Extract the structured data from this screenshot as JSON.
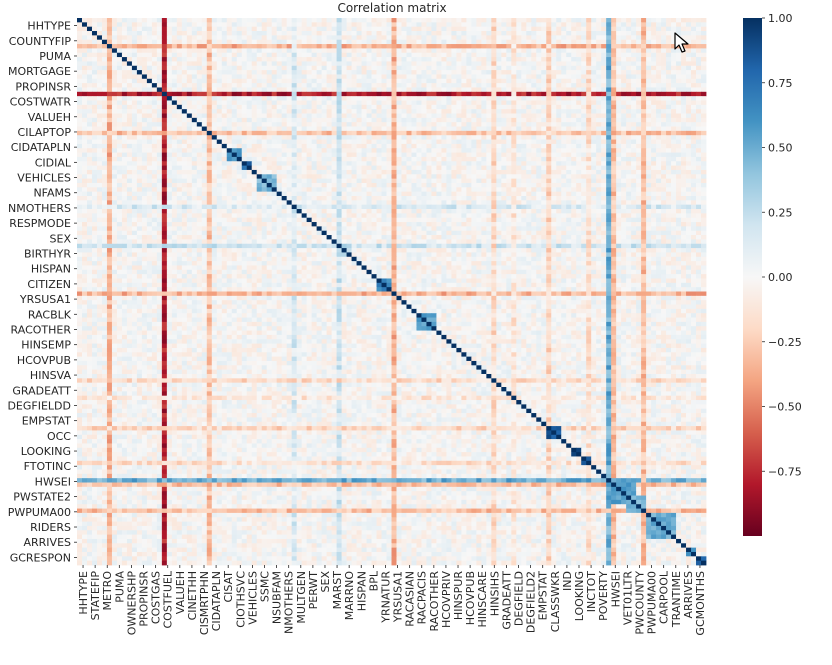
{
  "chart_data": {
    "type": "heatmap",
    "title": "Correlation matrix",
    "xlabel": "",
    "ylabel": "",
    "n_variables": 126,
    "y_tick_labels": [
      "HHTYPE",
      "COUNTYFIP",
      "PUMA",
      "MORTGAGE",
      "PROPINSR",
      "COSTWATR",
      "VALUEH",
      "CILAPTOP",
      "CIDATAPLN",
      "CIDIAL",
      "VEHICLES",
      "NFAMS",
      "NMOTHERS",
      "RESPMODE",
      "SEX",
      "BIRTHYR",
      "HISPAN",
      "CITIZEN",
      "YRSUSA1",
      "RACBLK",
      "RACOTHER",
      "HINSEMP",
      "HCOVPUB",
      "HINSVA",
      "GRADEATT",
      "DEGFIELDD",
      "EMPSTAT",
      "OCC",
      "LOOKING",
      "FTOTINC",
      "HWSEI",
      "PWSTATE2",
      "PWPUMA00",
      "RIDERS",
      "ARRIVES",
      "GCRESPON"
    ],
    "x_tick_labels": [
      "HHTYPE",
      "STATEFIP",
      "METRO",
      "PUMA",
      "OWNERSHP",
      "PROPINSR",
      "COSTGAS",
      "COSTFUEL",
      "VALUEH",
      "CINETHH",
      "CISMRTPHN",
      "CIDATAPLN",
      "CISAT",
      "CIOTHSVC",
      "VEHICLES",
      "SSMC",
      "NSUBFAM",
      "NMOTHERS",
      "MULTGEN",
      "PERWT",
      "SEX",
      "MARST",
      "MARRNO",
      "HISPAN",
      "BPL",
      "YRNATUR",
      "YRSUSA1",
      "RACASIAN",
      "RACPACIS",
      "RACOTHER",
      "HCOVPRIV",
      "HINSPUR",
      "HCOVPUB",
      "HINSCARE",
      "HINSIHS",
      "GRADEATT",
      "DEGFIELD",
      "DEGFIELD2",
      "EMPSTAT",
      "CLASSWKR",
      "IND",
      "LOOKING",
      "INCTOT",
      "POVERTY",
      "HWSEI",
      "VET01LTR",
      "PWCOUNTY",
      "PWPUMA00",
      "CARPOOL",
      "TRANTIME",
      "ARRIVES",
      "GCMONTHS"
    ],
    "color_scale": {
      "colormap": "RdBu",
      "min": -1.0,
      "max": 1.0,
      "ticks": [
        "1.00",
        "0.75",
        "0.50",
        "0.25",
        "0.00",
        "−0.25",
        "−0.50",
        "−0.75"
      ],
      "tick_values": [
        1.0,
        0.75,
        0.5,
        0.25,
        0.0,
        -0.25,
        -0.5,
        -0.75
      ],
      "stops": [
        "#67001f",
        "#b2182b",
        "#d6604d",
        "#f4a582",
        "#fddbc7",
        "#f7f7f7",
        "#d1e5f0",
        "#92c5de",
        "#4393c3",
        "#2166ac",
        "#053061"
      ]
    },
    "diagonal_value": 1.0,
    "blocks": [
      {
        "range": [
          8,
          9
        ],
        "value": 0.9
      },
      {
        "range": [
          30,
          33
        ],
        "value": 0.6
      },
      {
        "range": [
          33,
          35
        ],
        "value": 0.8
      },
      {
        "range": [
          36,
          40
        ],
        "value": 0.45
      },
      {
        "range": [
          52,
          55
        ],
        "value": 0.3
      },
      {
        "range": [
          60,
          63
        ],
        "value": 0.65
      },
      {
        "range": [
          68,
          72
        ],
        "value": 0.55
      },
      {
        "range": [
          94,
          97
        ],
        "value": 0.85
      },
      {
        "range": [
          99,
          101
        ],
        "value": 0.9
      },
      {
        "range": [
          101,
          103
        ],
        "value": 0.85
      },
      {
        "range": [
          106,
          112
        ],
        "value": 0.55
      },
      {
        "range": [
          110,
          114
        ],
        "value": 0.45
      },
      {
        "range": [
          114,
          120
        ],
        "value": 0.5
      },
      {
        "range": [
          122,
          124
        ],
        "value": 0.6
      },
      {
        "range": [
          124,
          126
        ],
        "value": 0.85
      }
    ],
    "bands": [
      {
        "index": 6,
        "value": -0.35
      },
      {
        "index": 17,
        "value": -0.8
      },
      {
        "index": 26,
        "value": -0.3
      },
      {
        "index": 43,
        "value": 0.15
      },
      {
        "index": 52,
        "value": 0.2
      },
      {
        "index": 63,
        "value": -0.35
      },
      {
        "index": 83,
        "value": -0.18
      },
      {
        "index": 87,
        "value": -0.12
      },
      {
        "index": 94,
        "value": -0.2
      },
      {
        "index": 102,
        "value": -0.15
      },
      {
        "index": 106,
        "value": 0.5
      },
      {
        "index": 107,
        "value": -0.3
      },
      {
        "index": 113,
        "value": -0.3
      }
    ]
  }
}
